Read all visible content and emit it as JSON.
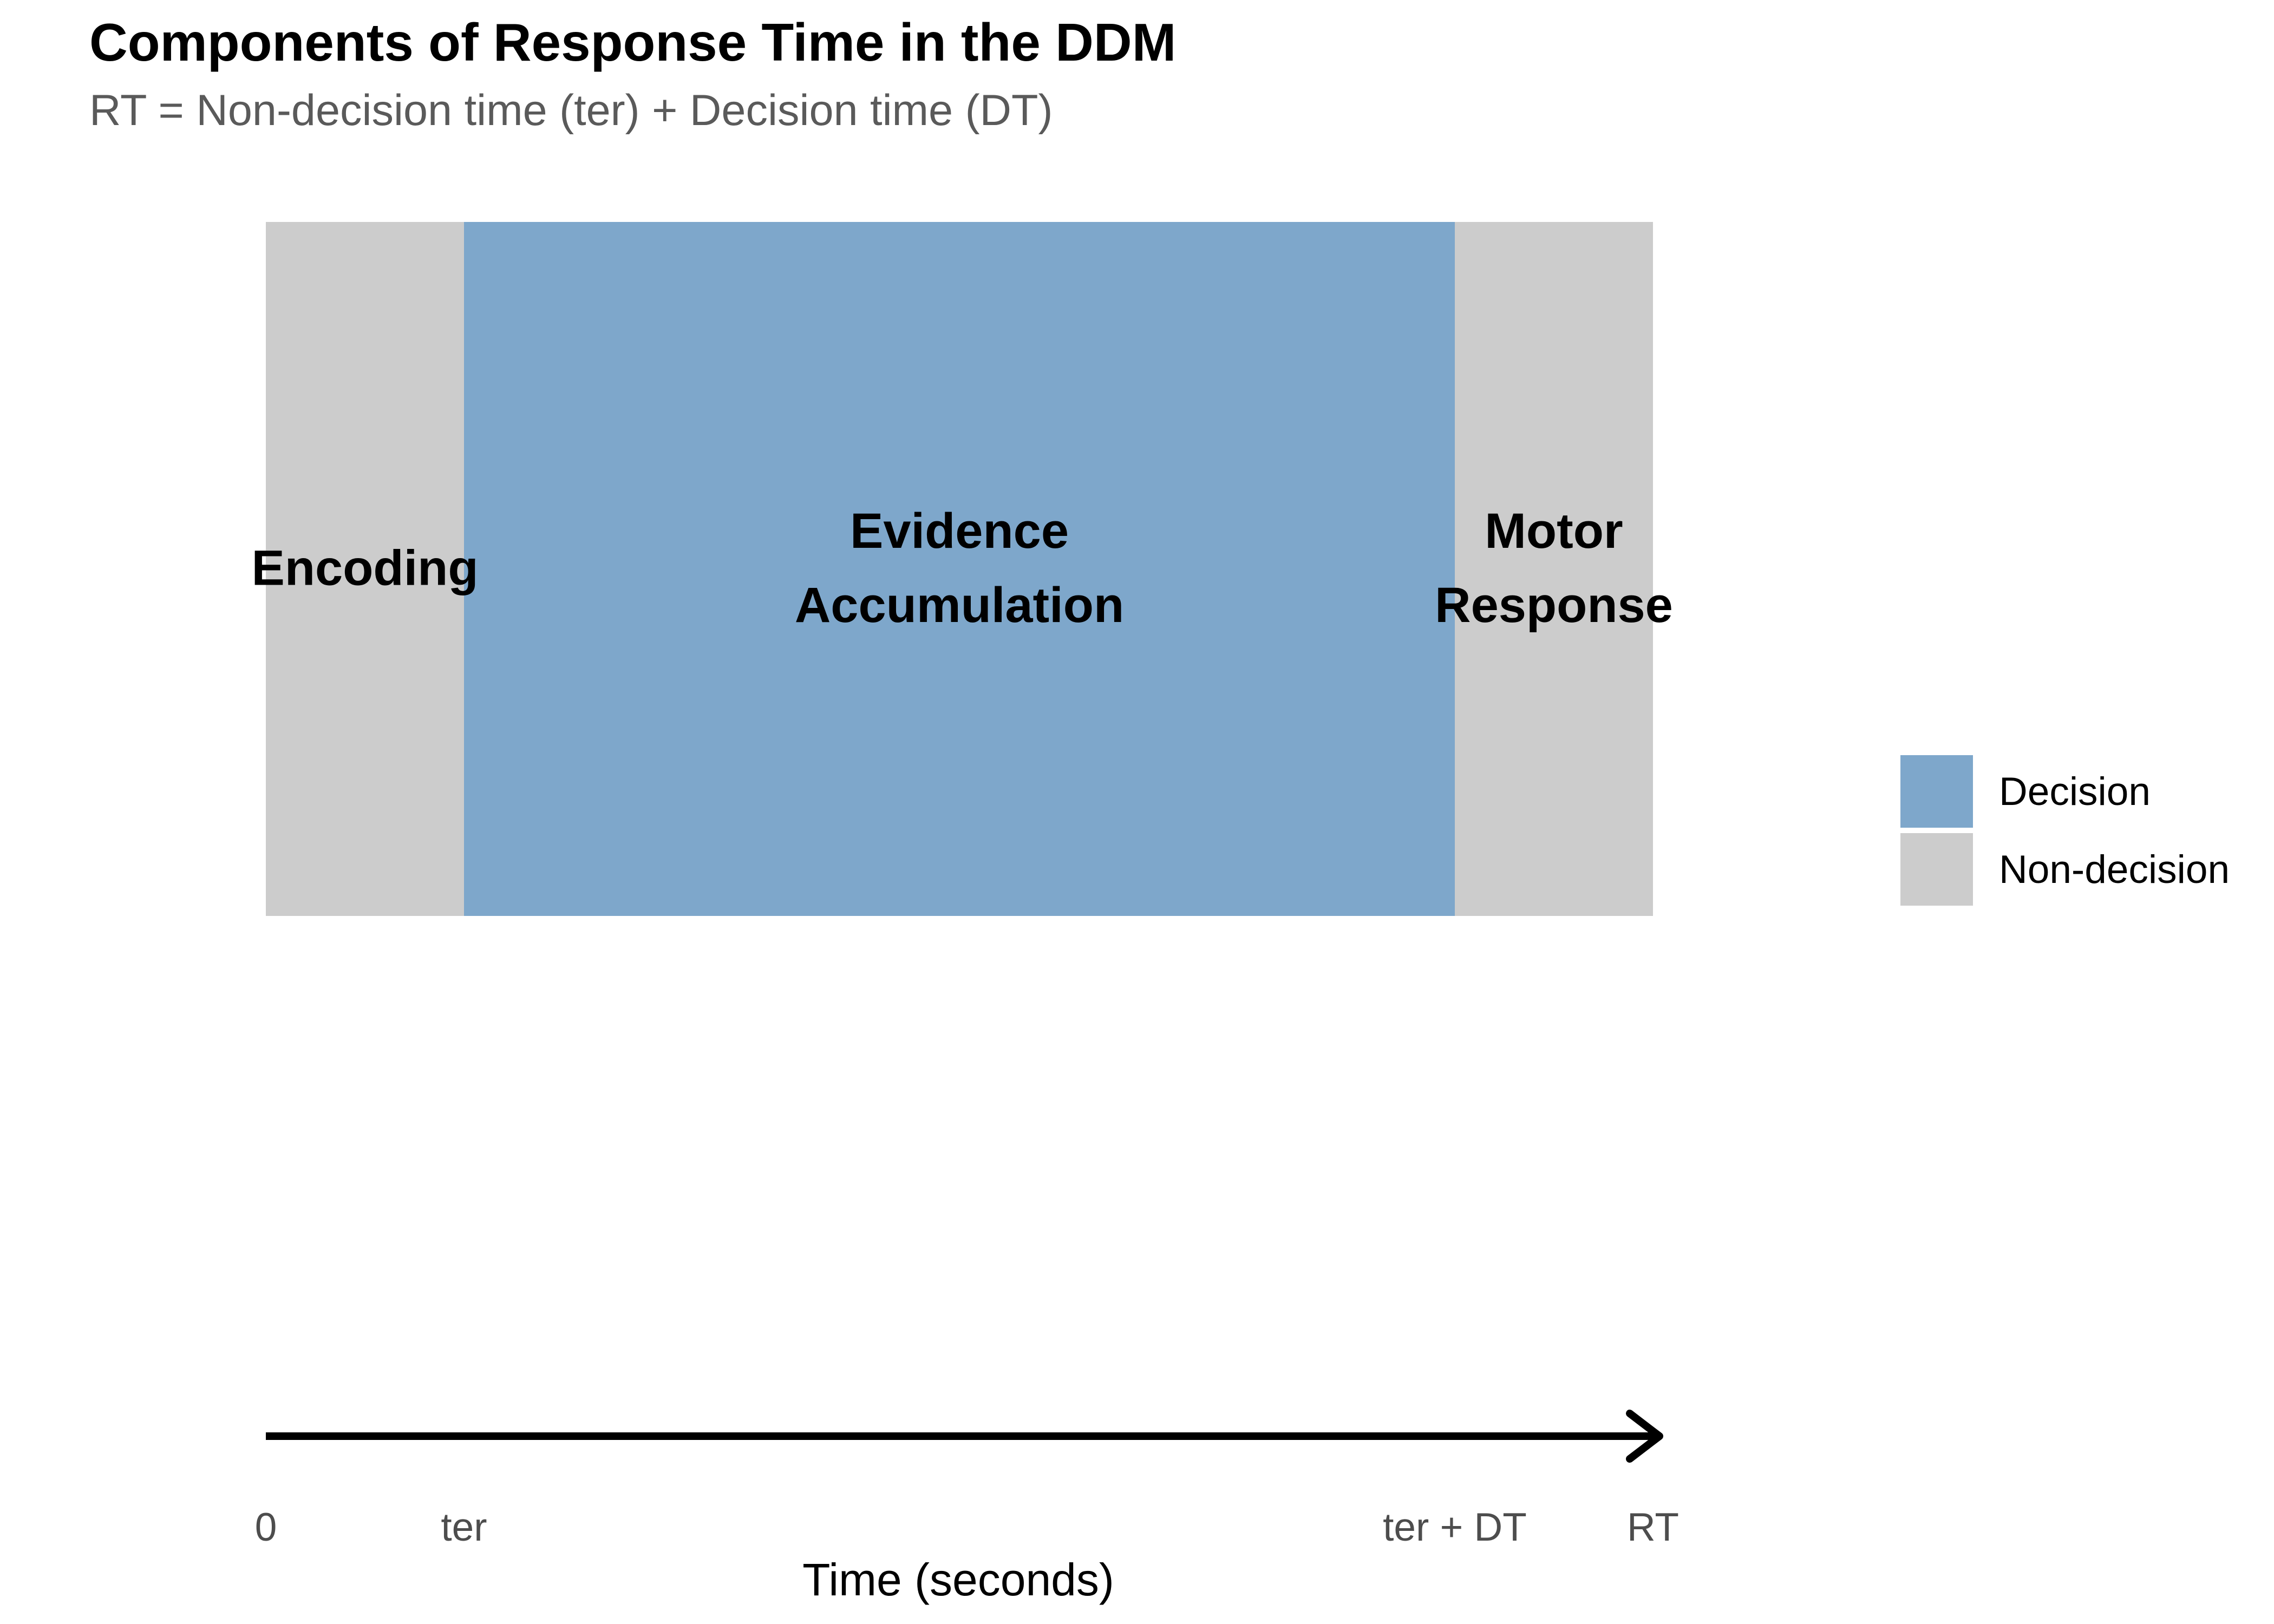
{
  "title": "Components of Response Time in the DDM",
  "subtitle": "RT = Non-decision time (ter) + Decision time (DT)",
  "colors": {
    "decision": "#7ea7cb",
    "non_decision": "#cccccc",
    "axis_arrow": "#000000"
  },
  "chart_data": {
    "type": "bar",
    "title": "Components of Response Time in the DDM",
    "subtitle": "RT = Non-decision time (ter) + Decision time (DT)",
    "xlabel": "Time (seconds)",
    "xlim": [
      0,
      7
    ],
    "segments": [
      {
        "label_lines": [
          "Encoding"
        ],
        "category": "Non-decision",
        "start": 0,
        "end": 1
      },
      {
        "label_lines": [
          "Evidence",
          "Accumulation"
        ],
        "category": "Decision",
        "start": 1,
        "end": 6
      },
      {
        "label_lines": [
          "Motor",
          "Response"
        ],
        "category": "Non-decision",
        "start": 6,
        "end": 7
      }
    ],
    "ticks": [
      {
        "value": 0,
        "label": "0"
      },
      {
        "value": 1,
        "label": "ter"
      },
      {
        "value": 6,
        "label": "ter + DT"
      },
      {
        "value": 7,
        "label": "RT"
      }
    ],
    "legend": {
      "position": "right",
      "items": [
        {
          "label": "Decision",
          "color": "#7ea7cb"
        },
        {
          "label": "Non-decision",
          "color": "#cccccc"
        }
      ]
    },
    "grid": false
  }
}
